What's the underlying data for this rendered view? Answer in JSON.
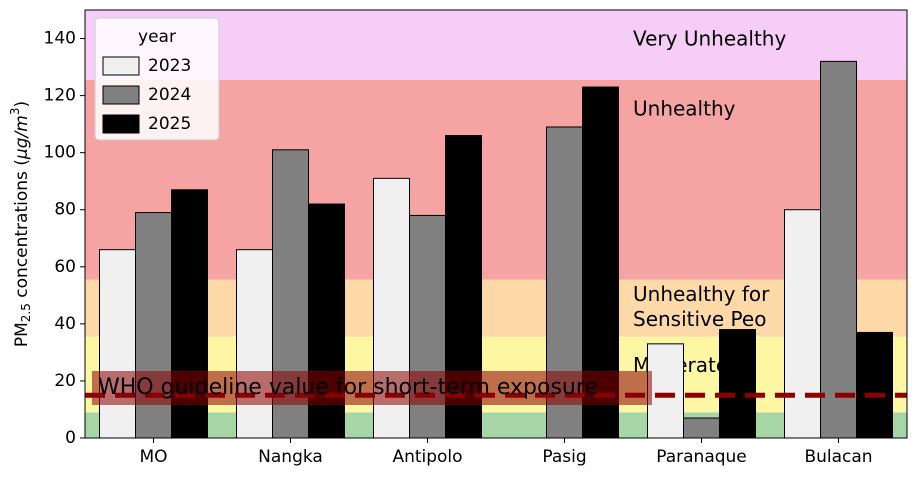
{
  "chart_data": {
    "type": "bar",
    "ylabel": [
      "PM",
      "2.5",
      " concentrations (",
      "μg/m",
      "3",
      ")"
    ],
    "categories": [
      "MO",
      "Nangka",
      "Antipolo",
      "Pasig",
      "Paranaque",
      "Bulacan"
    ],
    "series": [
      {
        "name": "2023",
        "color": "#f0f0f0",
        "values": [
          66,
          66,
          91,
          null,
          33,
          80
        ]
      },
      {
        "name": "2024",
        "color": "#808080",
        "values": [
          79,
          101,
          78,
          109,
          7,
          132
        ]
      },
      {
        "name": "2025",
        "color": "#000000",
        "values": [
          87,
          82,
          106,
          123,
          38,
          37
        ]
      }
    ],
    "legend_title": "year",
    "legend": "upper left",
    "ylim": [
      0,
      150
    ],
    "yticks": [
      0,
      20,
      40,
      60,
      80,
      100,
      120,
      140
    ],
    "aqi_bands": [
      {
        "from": 0,
        "to": 9,
        "color": "#a6d6a6"
      },
      {
        "from": 9,
        "to": 35.5,
        "color": "#fdf7a3",
        "label": [
          "Moderate"
        ],
        "text_color": "#e6d800"
      },
      {
        "from": 35.5,
        "to": 55.5,
        "color": "#fdd9a8",
        "label": [
          "Unhealthy for",
          "Sensitive Peo"
        ],
        "text_color": "#f5a623"
      },
      {
        "from": 55.5,
        "to": 125.5,
        "color": "#f6a3a3",
        "label": [
          "Unhealthy"
        ],
        "text_color": "#d40000"
      },
      {
        "from": 125.5,
        "to": 150,
        "color": "#f6cdf6",
        "label": [
          "Very Unhealthy"
        ],
        "text_color": "#e07ee0"
      }
    ],
    "reference_line": {
      "value": 15,
      "color": "#8b0000",
      "label": "WHO guideline value for short-term exposure"
    }
  }
}
